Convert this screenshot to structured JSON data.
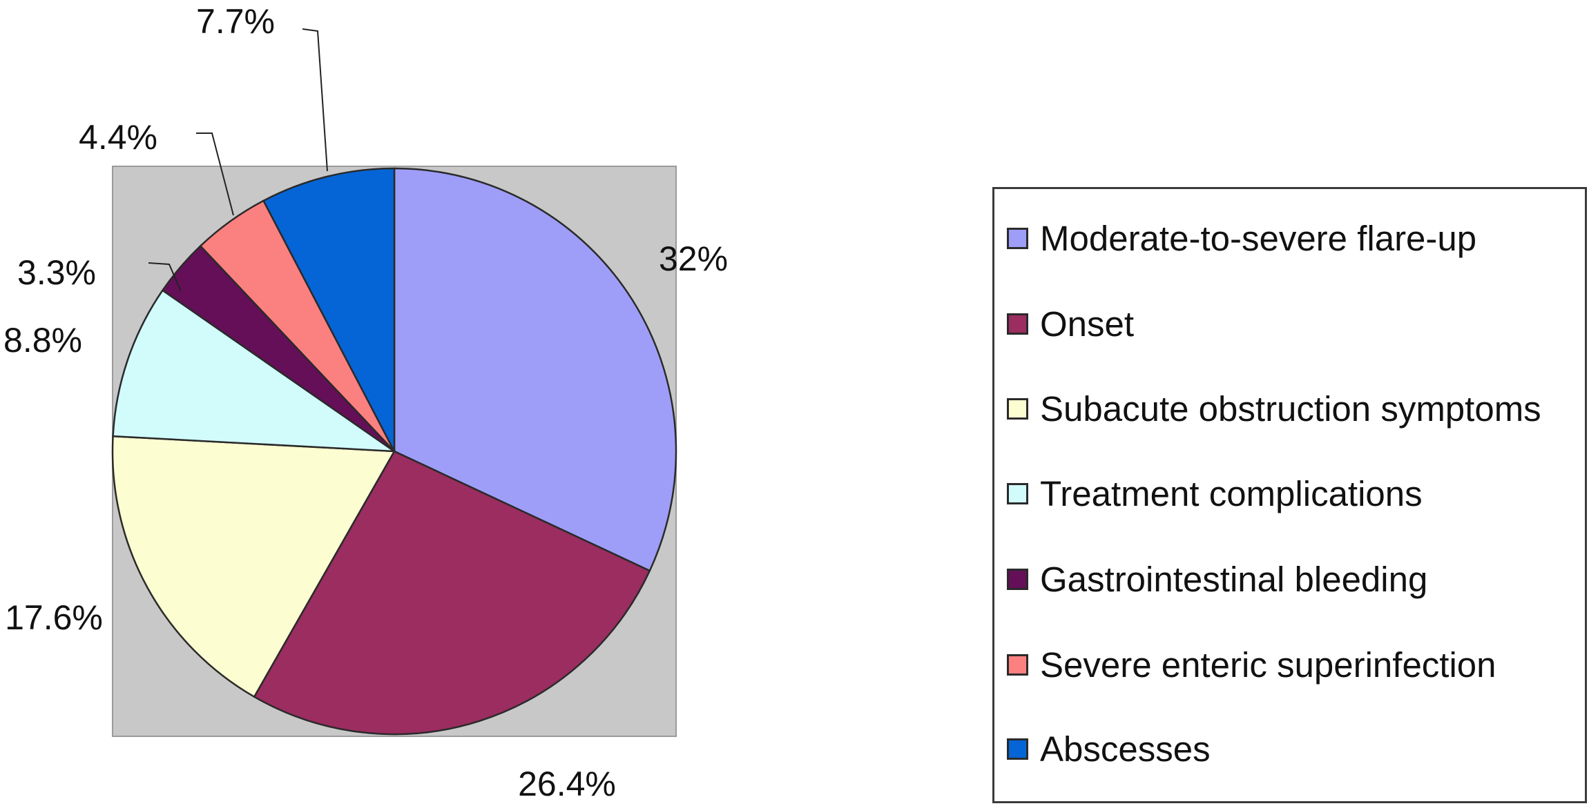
{
  "chart_data": {
    "type": "pie",
    "slices": [
      {
        "label": "Moderate-to-severe flare-up",
        "value": 32,
        "display": "32%",
        "color": "#9e9ef9"
      },
      {
        "label": "Onset",
        "value": 26.4,
        "display": "26.4%",
        "color": "#9b2d60"
      },
      {
        "label": "Subacute obstruction symptoms",
        "value": 17.6,
        "display": "17.6%",
        "color": "#fdfdd2"
      },
      {
        "label": "Treatment complications",
        "value": 8.8,
        "display": "8.8%",
        "color": "#d2fcfc"
      },
      {
        "label": "Gastrointestinal bleeding",
        "value": 3.3,
        "display": "3.3%",
        "color": "#640f58"
      },
      {
        "label": "Severe enteric superinfection",
        "value": 4.4,
        "display": "4.4%",
        "color": "#fb8080"
      },
      {
        "label": "Abscesses",
        "value": 7.7,
        "display": "7.7%",
        "color": "#0565d6"
      }
    ],
    "legend_position": "right",
    "plot_background": "#c8c8c8"
  }
}
